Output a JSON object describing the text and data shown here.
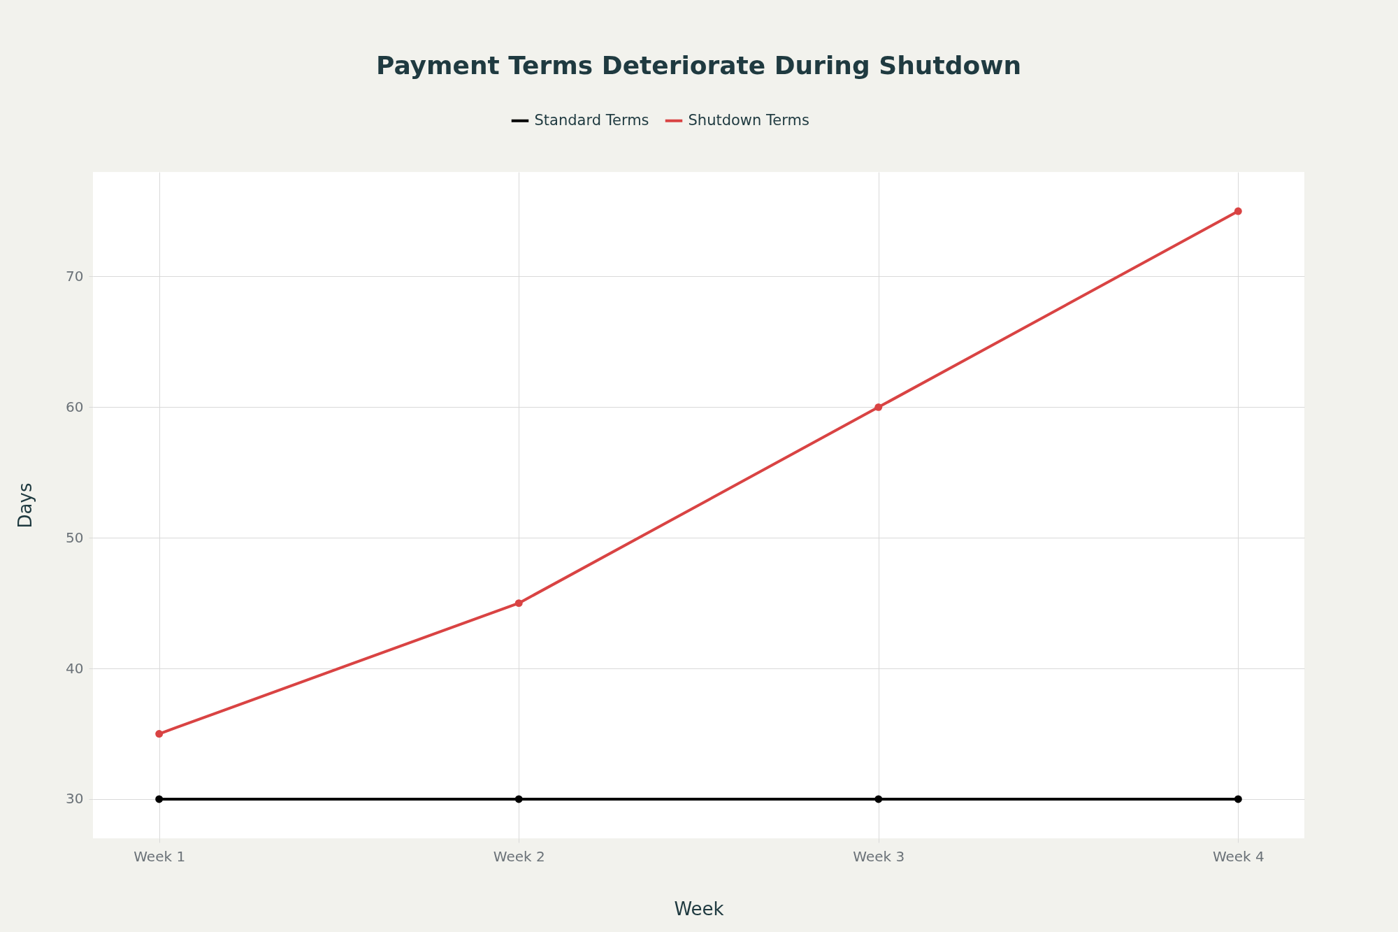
{
  "chart_data": {
    "type": "line",
    "title": "Payment Terms Deteriorate During Shutdown",
    "xlabel": "Week",
    "ylabel": "Days",
    "categories": [
      "Week 1",
      "Week 2",
      "Week 3",
      "Week 4"
    ],
    "series": [
      {
        "name": "Standard Terms",
        "color": "#000000",
        "values": [
          30,
          30,
          30,
          30
        ]
      },
      {
        "name": "Shutdown Terms",
        "color": "#d94343",
        "values": [
          35,
          45,
          60,
          75
        ]
      }
    ],
    "ylim": [
      27,
      78
    ],
    "yticks": [
      30,
      40,
      50,
      60,
      70
    ],
    "grid": true,
    "legend": "top",
    "marker": "circle",
    "line_style": "solid"
  }
}
